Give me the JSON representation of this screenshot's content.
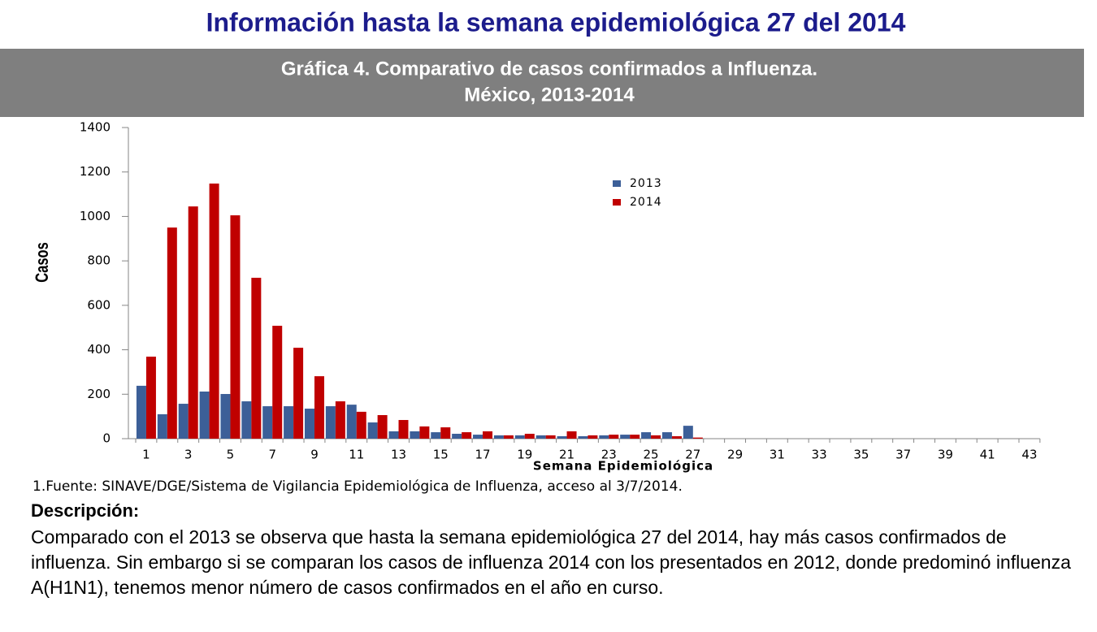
{
  "header": {
    "title": "Información hasta la semana epidemiológica 27 del 2014"
  },
  "chart_data": {
    "type": "bar",
    "title": "Gráfica 4. Comparativo de casos confirmados a Influenza.",
    "subtitle": "México, 2013-2014",
    "x_label": "Semana Epidemiológica",
    "y_label": "Casos",
    "categories": [
      "1",
      null,
      "3",
      null,
      "5",
      null,
      "7",
      null,
      "9",
      null,
      "11",
      null,
      "13",
      null,
      "15",
      null,
      "17",
      null,
      "19",
      null,
      "21",
      null,
      "23",
      null,
      "25",
      null,
      "27",
      null,
      "29",
      null,
      "31",
      null,
      "33",
      null,
      "35",
      null,
      "37",
      null,
      "39",
      null,
      "41",
      null,
      "43"
    ],
    "series": [
      {
        "name": "2013",
        "color": "#3c5f98",
        "values": [
          238,
          110,
          157,
          212,
          201,
          168,
          146,
          146,
          135,
          146,
          153,
          73,
          33,
          33,
          29,
          22,
          18,
          15,
          15,
          15,
          11,
          11,
          15,
          18,
          29,
          29,
          58,
          null,
          null,
          null,
          null,
          null,
          null,
          null,
          null,
          null,
          null,
          null,
          null,
          null,
          null,
          null,
          null
        ]
      },
      {
        "name": "2014",
        "color": "#c00000",
        "values": [
          369,
          950,
          1045,
          1148,
          1005,
          724,
          508,
          409,
          281,
          168,
          121,
          106,
          84,
          55,
          51,
          29,
          33,
          15,
          22,
          15,
          33,
          15,
          18,
          18,
          15,
          11,
          5,
          null,
          null,
          null,
          null,
          null,
          null,
          null,
          null,
          null,
          null,
          null,
          null,
          null,
          null,
          null,
          null
        ]
      }
    ],
    "ylim": [
      0,
      1400
    ],
    "yticks": [
      0,
      200,
      400,
      600,
      800,
      1000,
      1200,
      1400
    ],
    "grid": false,
    "legend": "top"
  },
  "notes": {
    "source": "1.Fuente: SINAVE/DGE/Sistema de Vigilancia Epidemiológica de Influenza, acceso al 3/7/2014.",
    "heading": "Descripción:",
    "text": "Comparado con el 2013 se observa que hasta la semana epidemiológica 27 del 2014, hay más casos confirmados de influenza. Sin embargo si se comparan los casos de influenza 2014 con los presentados en 2012, donde predominó influenza A(H1N1), tenemos menor número de casos confirmados en el año en curso."
  }
}
